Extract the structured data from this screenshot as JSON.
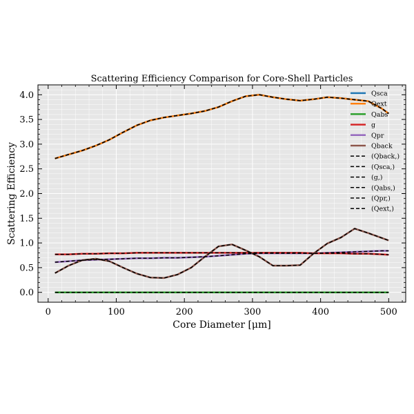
{
  "chart_data": {
    "type": "line",
    "title": "Scattering Efficiency Comparison for Core-Shell Particles",
    "xlabel": "Core Diameter [μm]",
    "ylabel": "Scattering Efficiency",
    "xlim": [
      -15,
      525
    ],
    "ylim": [
      -0.2,
      4.2
    ],
    "xticks": [
      0,
      100,
      200,
      300,
      400,
      500
    ],
    "yticks": [
      0.0,
      0.5,
      1.0,
      1.5,
      2.0,
      2.5,
      3.0,
      3.5,
      4.0
    ],
    "xtick_labels": [
      "0",
      "100",
      "200",
      "300",
      "400",
      "500"
    ],
    "ytick_labels": [
      "0.0",
      "0.5",
      "1.0",
      "1.5",
      "2.0",
      "2.5",
      "3.0",
      "3.5",
      "4.0"
    ],
    "grid": true,
    "background": "#e6e6e6",
    "legend_position": "top-right",
    "x": [
      10,
      30,
      50,
      70,
      90,
      110,
      130,
      150,
      170,
      190,
      210,
      230,
      250,
      270,
      290,
      310,
      330,
      350,
      370,
      390,
      410,
      430,
      450,
      470,
      490,
      500
    ],
    "series": [
      {
        "name": "Qsca",
        "color": "#1f77b4",
        "style": "solid",
        "values": [
          2.71,
          2.79,
          2.87,
          2.97,
          3.09,
          3.24,
          3.38,
          3.48,
          3.54,
          3.58,
          3.62,
          3.67,
          3.75,
          3.87,
          3.97,
          4.0,
          3.95,
          3.91,
          3.88,
          3.91,
          3.95,
          3.93,
          3.9,
          3.87,
          3.72,
          3.62
        ]
      },
      {
        "name": "Qext",
        "color": "#ff7f0e",
        "style": "solid",
        "values": [
          2.71,
          2.79,
          2.87,
          2.97,
          3.09,
          3.24,
          3.38,
          3.48,
          3.54,
          3.58,
          3.62,
          3.67,
          3.75,
          3.87,
          3.97,
          4.0,
          3.95,
          3.91,
          3.88,
          3.91,
          3.95,
          3.93,
          3.9,
          3.87,
          3.72,
          3.62
        ]
      },
      {
        "name": "Qabs",
        "color": "#2ca02c",
        "style": "solid",
        "values": [
          0,
          0,
          0,
          0,
          0,
          0,
          0,
          0,
          0,
          0,
          0,
          0,
          0,
          0,
          0,
          0,
          0,
          0,
          0,
          0,
          0,
          0,
          0,
          0,
          0,
          0
        ]
      },
      {
        "name": "g",
        "color": "#d62728",
        "style": "solid",
        "values": [
          0.77,
          0.77,
          0.78,
          0.78,
          0.79,
          0.79,
          0.8,
          0.8,
          0.8,
          0.8,
          0.8,
          0.8,
          0.8,
          0.8,
          0.8,
          0.8,
          0.8,
          0.8,
          0.8,
          0.79,
          0.79,
          0.79,
          0.78,
          0.78,
          0.77,
          0.76
        ]
      },
      {
        "name": "Qpr",
        "color": "#9467bd",
        "style": "solid",
        "values": [
          0.61,
          0.63,
          0.65,
          0.66,
          0.67,
          0.68,
          0.69,
          0.69,
          0.7,
          0.7,
          0.71,
          0.72,
          0.74,
          0.76,
          0.78,
          0.79,
          0.79,
          0.79,
          0.79,
          0.79,
          0.8,
          0.81,
          0.82,
          0.83,
          0.84,
          0.84
        ]
      },
      {
        "name": "Qback",
        "color": "#8c564b",
        "style": "solid",
        "values": [
          0.39,
          0.54,
          0.65,
          0.68,
          0.63,
          0.5,
          0.38,
          0.3,
          0.29,
          0.36,
          0.5,
          0.72,
          0.93,
          0.97,
          0.85,
          0.72,
          0.54,
          0.54,
          0.55,
          0.79,
          0.99,
          1.11,
          1.29,
          1.2,
          1.1,
          1.05
        ]
      },
      {
        "name": "(Qback,)",
        "color": "#000000",
        "style": "dashed",
        "ref": 5
      },
      {
        "name": "(Qsca,)",
        "color": "#000000",
        "style": "dashed",
        "ref": 0
      },
      {
        "name": "(g,)",
        "color": "#000000",
        "style": "dashed",
        "ref": 3
      },
      {
        "name": "(Qabs,)",
        "color": "#000000",
        "style": "dashed",
        "ref": 2
      },
      {
        "name": "(Qpr,)",
        "color": "#000000",
        "style": "dashed",
        "ref": 4
      },
      {
        "name": "(Qext,)",
        "color": "#000000",
        "style": "dashed",
        "ref": 1
      }
    ]
  }
}
